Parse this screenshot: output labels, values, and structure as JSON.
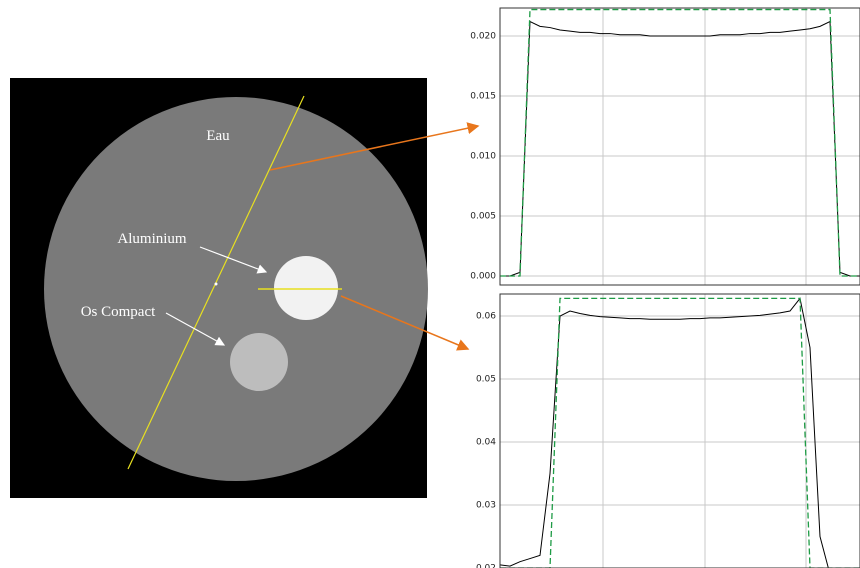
{
  "image": {
    "labels": [
      "Eau",
      "Aluminium",
      "Os Compact"
    ]
  },
  "chart_data": [
    {
      "type": "line",
      "ylim": [
        -0.00075,
        0.02233
      ],
      "grid": true,
      "yticks": [
        {
          "value": 0,
          "label": "0.000"
        },
        0.005,
        {
          "value": 0.01,
          "label": "0.010"
        },
        0.015,
        {
          "value": 0.02,
          "label": "0.020"
        }
      ],
      "series": [
        {
          "color": "#000000",
          "values": [
            0,
            0,
            0.0003,
            0.0212,
            0.0208,
            0.0207,
            0.0205,
            0.0204,
            0.0203,
            0.0203,
            0.0202,
            0.0202,
            0.0201,
            0.0201,
            0.0201,
            0.02,
            0.02,
            0.02,
            0.02,
            0.02,
            0.02,
            0.02,
            0.0201,
            0.0201,
            0.0201,
            0.0202,
            0.0202,
            0.0203,
            0.0203,
            0.0204,
            0.0205,
            0.0206,
            0.0208,
            0.0212,
            0.0003,
            0,
            0
          ]
        },
        {
          "color": "#1e9b45",
          "dashed": true,
          "values": [
            0,
            0,
            0,
            0.0222,
            0.0222,
            0.0222,
            0.0222,
            0.0222,
            0.0222,
            0.0222,
            0.0222,
            0.0222,
            0.0222,
            0.0222,
            0.0222,
            0.0222,
            0.0222,
            0.0222,
            0.0222,
            0.0222,
            0.0222,
            0.0222,
            0.0222,
            0.0222,
            0.0222,
            0.0222,
            0.0222,
            0.0222,
            0.0222,
            0.0222,
            0.0222,
            0.0222,
            0.0222,
            0.0222,
            0,
            0,
            0
          ]
        }
      ]
    },
    {
      "type": "line",
      "ylim": [
        0.02,
        0.0635
      ],
      "grid": true,
      "yticks": [
        0.02,
        0.03,
        0.04,
        0.05,
        0.06
      ],
      "series": [
        {
          "color": "#000000",
          "values": [
            0.0205,
            0.0203,
            0.021,
            0.0215,
            0.022,
            0.035,
            0.06,
            0.0608,
            0.0604,
            0.0601,
            0.0599,
            0.0598,
            0.0597,
            0.0596,
            0.0596,
            0.0595,
            0.0595,
            0.0595,
            0.0595,
            0.0596,
            0.0596,
            0.0597,
            0.0597,
            0.0598,
            0.0599,
            0.06,
            0.0601,
            0.0603,
            0.0605,
            0.0608,
            0.0628,
            0.055,
            0.025,
            0.019,
            0.019,
            0.019,
            0.019
          ]
        },
        {
          "color": "#1e9b45",
          "dashed": true,
          "values": [
            0.02,
            0.02,
            0.02,
            0.02,
            0.02,
            0.02,
            0.0628,
            0.0628,
            0.0628,
            0.0628,
            0.0628,
            0.0628,
            0.0628,
            0.0628,
            0.0628,
            0.0628,
            0.0628,
            0.0628,
            0.0628,
            0.0628,
            0.0628,
            0.0628,
            0.0628,
            0.0628,
            0.0628,
            0.0628,
            0.0628,
            0.0628,
            0.0628,
            0.0628,
            0.0628,
            0.02,
            0.02,
            0.02,
            0.02,
            0.02,
            0.02
          ]
        }
      ]
    }
  ]
}
